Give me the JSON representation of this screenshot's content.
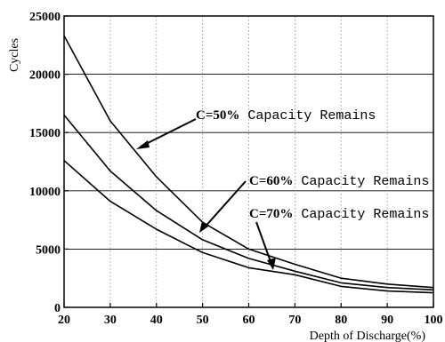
{
  "chart_data": {
    "type": "line",
    "x": [
      20,
      30,
      40,
      50,
      60,
      70,
      80,
      90,
      100
    ],
    "xlim": [
      20,
      100
    ],
    "ylim": [
      0,
      25000
    ],
    "x_ticks": [
      "20",
      "30",
      "40",
      "50",
      "60",
      "70",
      "80",
      "90",
      "100"
    ],
    "y_ticks": [
      "0",
      "5000",
      "10000",
      "15000",
      "20000",
      "25000"
    ],
    "xlabel": "Depth of Discharge(%)",
    "ylabel": "Cycles",
    "grid": true,
    "series": [
      {
        "name": "C=50% Capacity Remains",
        "values": [
          23300,
          16000,
          11200,
          7300,
          5000,
          3700,
          2500,
          2000,
          1700
        ]
      },
      {
        "name": "C=60% Capacity Remains",
        "values": [
          16500,
          11700,
          8300,
          5800,
          4200,
          3100,
          2100,
          1700,
          1500
        ]
      },
      {
        "name": "C=70% Capacity Remains",
        "values": [
          12600,
          9100,
          6700,
          4700,
          3400,
          2800,
          1800,
          1400,
          1250
        ]
      }
    ],
    "annotations": [
      {
        "prefix": "C=50%",
        "suffix": " Capacity Remains"
      },
      {
        "prefix": "C=60%",
        "suffix": " Capacity Remains"
      },
      {
        "prefix": "C=70%",
        "suffix": " Capacity Remains"
      }
    ]
  }
}
